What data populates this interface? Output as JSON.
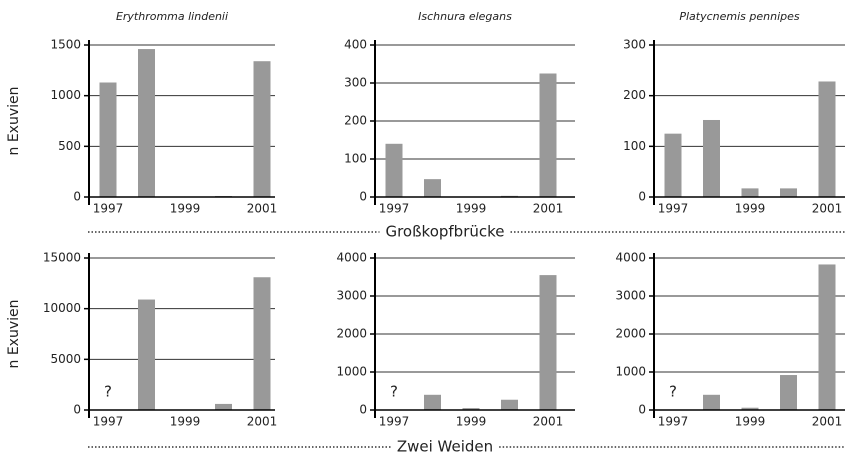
{
  "chart_data": [
    {
      "type": "bar",
      "title": "Erythromma lindenii",
      "ylabel": "n Exuvien",
      "categories": [
        "1997",
        null,
        "1999",
        null,
        "2001"
      ],
      "values": [
        1130,
        1460,
        0,
        10,
        1340
      ],
      "color": "#999999",
      "ylim": [
        0,
        1500
      ],
      "yticks": [
        0,
        500,
        1000,
        1500
      ],
      "grid": true
    },
    {
      "type": "bar",
      "title": "Ischnura elegans",
      "categories": [
        "1997",
        null,
        "1999",
        null,
        "2001"
      ],
      "values": [
        140,
        47,
        1,
        3,
        325
      ],
      "color": "#999999",
      "ylim": [
        0,
        400
      ],
      "yticks": [
        0,
        100,
        200,
        300,
        400
      ],
      "grid": true
    },
    {
      "type": "bar",
      "title": "Platycnemis pennipes",
      "categories": [
        "1997",
        null,
        "1999",
        null,
        "2001"
      ],
      "values": [
        125,
        152,
        17,
        17,
        228
      ],
      "color": "#999999",
      "ylim": [
        0,
        300
      ],
      "yticks": [
        0,
        100,
        200,
        300
      ],
      "grid": true
    },
    {
      "type": "bar",
      "ylabel": "n Exuvien",
      "annotation": "?",
      "categories": [
        "1997",
        null,
        "1999",
        null,
        "2001"
      ],
      "values": [
        null,
        10900,
        0,
        600,
        13100
      ],
      "color": "#999999",
      "ylim": [
        0,
        15000
      ],
      "yticks": [
        0,
        5000,
        10000,
        15000
      ],
      "grid": true
    },
    {
      "type": "bar",
      "annotation": "?",
      "categories": [
        "1997",
        null,
        "1999",
        null,
        "2001"
      ],
      "values": [
        null,
        400,
        50,
        270,
        3550
      ],
      "color": "#999999",
      "ylim": [
        0,
        4000
      ],
      "yticks": [
        0,
        1000,
        2000,
        3000,
        4000
      ],
      "grid": true
    },
    {
      "type": "bar",
      "annotation": "?",
      "categories": [
        "1997",
        null,
        "1999",
        null,
        "2001"
      ],
      "values": [
        null,
        400,
        60,
        920,
        3830
      ],
      "color": "#999999",
      "ylim": [
        0,
        4000
      ],
      "yticks": [
        0,
        1000,
        2000,
        3000,
        4000
      ],
      "grid": true
    }
  ],
  "sections": [
    "Großkopfbrücke",
    "Zwei Weiden"
  ]
}
